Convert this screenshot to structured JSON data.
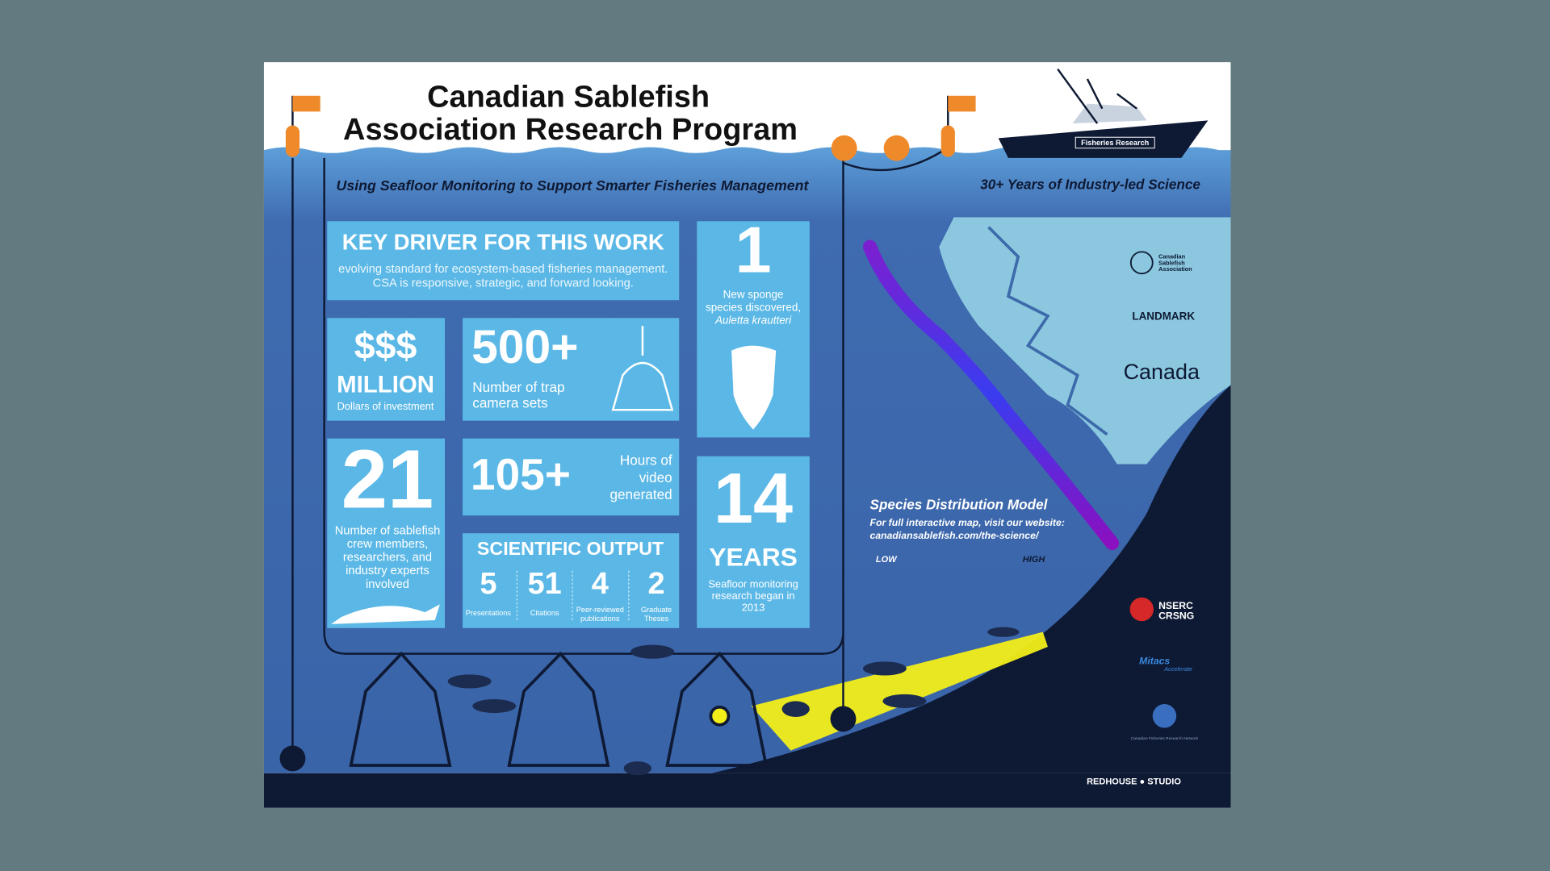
{
  "header": {
    "title": [
      "Canadian Sablefish",
      "Association Research Program"
    ],
    "subtitle": "Using Seafloor Monitoring to Support Smarter Fisheries Management",
    "tagline": "30+ Years of Industry-led Science",
    "vessel_label": "Fisheries Research"
  },
  "key_driver": {
    "title": "KEY DRIVER FOR THIS WORK",
    "text": [
      "evolving standard for ecosystem-based fisheries management.",
      "CSA is responsive, strategic, and forward looking."
    ]
  },
  "stats": {
    "sponge": {
      "value": "1",
      "label": [
        "New sponge",
        "species discovered,",
        "Auletta krautteri"
      ]
    },
    "investment": {
      "value": "$$$",
      "unit": "MILLION",
      "label": [
        "Dollars of investment"
      ]
    },
    "traps": {
      "value": "500+",
      "label": [
        "Number of trap",
        "camera sets"
      ]
    },
    "crew": {
      "value": "21",
      "label": [
        "Number of sablefish",
        "crew members,",
        "researchers, and",
        "industry experts",
        "involved"
      ]
    },
    "video": {
      "value": "105+",
      "label": [
        "Hours of",
        "video",
        "generated"
      ]
    },
    "years": {
      "value": "14",
      "unit": "YEARS",
      "label": [
        "Seafloor monitoring",
        "research began in",
        "2013"
      ]
    }
  },
  "scientific_output": {
    "title": "SCIENTIFIC OUTPUT",
    "items": [
      {
        "value": "5",
        "label": [
          "Presentations"
        ]
      },
      {
        "value": "51",
        "label": [
          "Citations"
        ]
      },
      {
        "value": "4",
        "label": [
          "Peer-reviewed",
          "publications"
        ]
      },
      {
        "value": "2",
        "label": [
          "Graduate",
          "Theses"
        ]
      }
    ]
  },
  "map": {
    "title": "Species Distribution Model",
    "text": "For full interactive map, visit our website:",
    "url": "canadiansablefish.com/the-science/",
    "legend": [
      "LOW",
      "HIGH"
    ]
  },
  "logos": {
    "csa": [
      "Canadian",
      "Sablefish",
      "Association"
    ],
    "landmark": "LANDMARK",
    "canada": "Canada",
    "nserc": [
      "NSERC",
      "CRSNG"
    ],
    "mitacs": [
      "Mitacs",
      "Accelerate"
    ],
    "cfrn": "Canadian Fisheries Research Network"
  },
  "credit": "REDHOUSE ● STUDIO"
}
